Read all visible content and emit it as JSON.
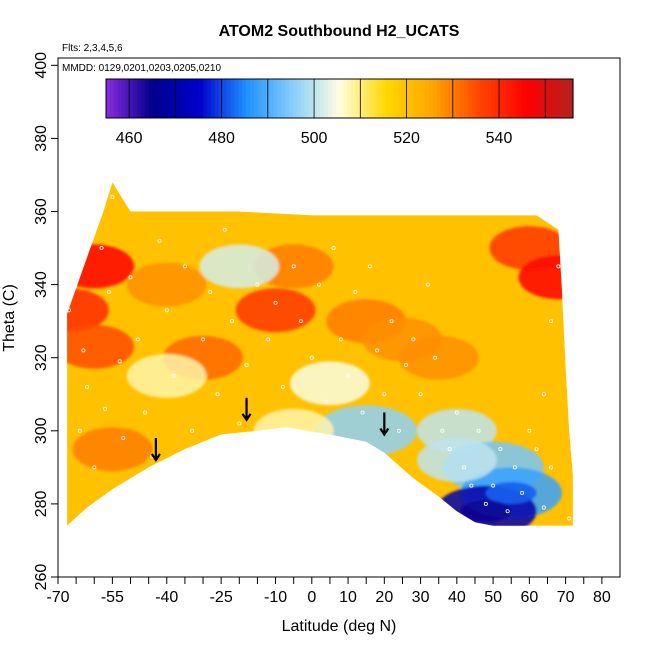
{
  "chart_data": {
    "type": "heatmap",
    "title": "ATOM2 Southbound H2_UCATS",
    "flights_note": "Flts: 2,3,4,5,6",
    "dates_note": "MMDD: 0129,0201,0203,0205,0210",
    "xlabel": "Latitude (deg N)",
    "ylabel": "Theta (C)",
    "xlim": [
      -70,
      85
    ],
    "ylim": [
      260,
      402
    ],
    "x_ticks": [
      -70,
      -55,
      -40,
      -25,
      -10,
      0,
      10,
      20,
      30,
      40,
      50,
      60,
      70,
      80
    ],
    "x_minor_ticks": [
      -65,
      -60,
      -50,
      -45,
      -35,
      -30,
      -20,
      -15,
      -5,
      5,
      15,
      25,
      35,
      45,
      55,
      65,
      75
    ],
    "y_ticks": [
      260,
      280,
      300,
      320,
      340,
      360,
      380,
      400
    ],
    "colorbar": {
      "range": [
        455,
        556
      ],
      "ticks": [
        460,
        480,
        500,
        520,
        540
      ],
      "boundaries": [
        460,
        470,
        480,
        490,
        500,
        510,
        520,
        530,
        540,
        550
      ],
      "colors": [
        "#8a2be2",
        "#00008b",
        "#0000cd",
        "#1e90ff",
        "#87cefa",
        "#ffffe0",
        "#ffd700",
        "#ffa500",
        "#ff4500",
        "#ff0000",
        "#b22222"
      ]
    },
    "coverage_upper": [
      [
        -67.5,
        332
      ],
      [
        -57.5,
        360
      ],
      [
        -55,
        368
      ],
      [
        -50,
        360
      ],
      [
        -20,
        360
      ],
      [
        0,
        359
      ],
      [
        20,
        359
      ],
      [
        40,
        359
      ],
      [
        62,
        359
      ],
      [
        68,
        355
      ],
      [
        69,
        338
      ],
      [
        70,
        318
      ],
      [
        71,
        300
      ],
      [
        72,
        288
      ],
      [
        72,
        276
      ]
    ],
    "coverage_lower": [
      [
        -67.5,
        274
      ],
      [
        -62,
        279
      ],
      [
        -55,
        284
      ],
      [
        -45,
        290
      ],
      [
        -35,
        295
      ],
      [
        -25,
        299
      ],
      [
        -15,
        300
      ],
      [
        -7,
        301
      ],
      [
        5,
        299
      ],
      [
        10,
        298
      ],
      [
        15,
        297
      ],
      [
        20,
        294
      ],
      [
        28,
        287
      ],
      [
        35,
        282
      ],
      [
        40,
        278
      ],
      [
        45,
        275
      ],
      [
        50,
        274
      ],
      [
        60,
        274
      ],
      [
        72,
        274
      ]
    ],
    "anomaly_high": [
      [
        -60,
        345,
        545
      ],
      [
        -67,
        333,
        540
      ],
      [
        -60,
        323,
        535
      ],
      [
        -10,
        333,
        538
      ],
      [
        -30,
        320,
        532
      ],
      [
        -40,
        340,
        528
      ],
      [
        -5,
        345,
        530
      ],
      [
        15,
        330,
        530
      ],
      [
        25,
        325,
        528
      ],
      [
        35,
        320,
        528
      ],
      [
        60,
        350,
        538
      ],
      [
        68,
        342,
        545
      ],
      [
        -55,
        295,
        530
      ]
    ],
    "anomaly_low": [
      [
        -20,
        345,
        502
      ],
      [
        -40,
        315,
        508
      ],
      [
        40,
        300,
        500
      ],
      [
        50,
        290,
        494
      ],
      [
        55,
        283,
        488
      ],
      [
        48,
        278,
        470
      ],
      [
        40,
        292,
        500
      ],
      [
        5,
        313,
        505
      ],
      [
        15,
        300,
        496
      ],
      [
        -5,
        300,
        508
      ]
    ],
    "background_value": 520,
    "obs_points": [
      [
        -67,
        333
      ],
      [
        -66,
        341
      ],
      [
        -64,
        300
      ],
      [
        -63,
        322
      ],
      [
        -62,
        312
      ],
      [
        -60,
        290
      ],
      [
        -58,
        350
      ],
      [
        -57,
        306
      ],
      [
        -56,
        338
      ],
      [
        -55,
        364
      ],
      [
        -53,
        319
      ],
      [
        -52,
        298
      ],
      [
        -50,
        342
      ],
      [
        -48,
        325
      ],
      [
        -46,
        305
      ],
      [
        -44,
        293
      ],
      [
        -42,
        352
      ],
      [
        -40,
        333
      ],
      [
        -38,
        315
      ],
      [
        -35,
        345
      ],
      [
        -33,
        300
      ],
      [
        -30,
        325
      ],
      [
        -28,
        338
      ],
      [
        -26,
        310
      ],
      [
        -24,
        355
      ],
      [
        -22,
        330
      ],
      [
        -20,
        302
      ],
      [
        -18,
        318
      ],
      [
        -15,
        340
      ],
      [
        -12,
        325
      ],
      [
        -10,
        335
      ],
      [
        -8,
        312
      ],
      [
        -5,
        345
      ],
      [
        -3,
        330
      ],
      [
        0,
        320
      ],
      [
        2,
        340
      ],
      [
        4,
        308
      ],
      [
        6,
        350
      ],
      [
        8,
        325
      ],
      [
        10,
        315
      ],
      [
        12,
        338
      ],
      [
        14,
        305
      ],
      [
        16,
        345
      ],
      [
        18,
        322
      ],
      [
        20,
        310
      ],
      [
        22,
        330
      ],
      [
        24,
        300
      ],
      [
        26,
        318
      ],
      [
        28,
        325
      ],
      [
        30,
        310
      ],
      [
        32,
        340
      ],
      [
        34,
        320
      ],
      [
        36,
        300
      ],
      [
        38,
        295
      ],
      [
        40,
        305
      ],
      [
        42,
        290
      ],
      [
        44,
        285
      ],
      [
        46,
        300
      ],
      [
        48,
        280
      ],
      [
        50,
        285
      ],
      [
        52,
        295
      ],
      [
        54,
        278
      ],
      [
        56,
        290
      ],
      [
        58,
        283
      ],
      [
        60,
        300
      ],
      [
        62,
        295
      ],
      [
        64,
        310
      ],
      [
        66,
        330
      ],
      [
        68,
        345
      ],
      [
        70,
        340
      ],
      [
        71,
        276
      ],
      [
        66,
        290
      ],
      [
        64,
        279
      ]
    ],
    "arrows": [
      [
        -43,
        292
      ],
      [
        -18,
        303
      ],
      [
        20,
        299
      ]
    ]
  }
}
